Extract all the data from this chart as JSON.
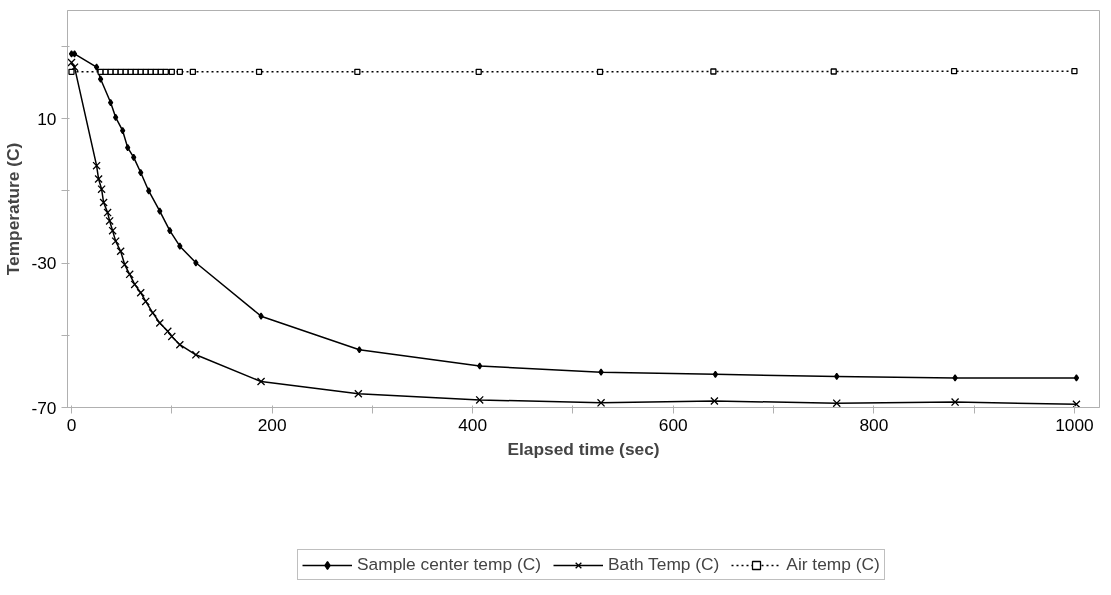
{
  "chart_data": {
    "type": "line",
    "xlabel": "Elapsed time (sec)",
    "ylabel": "Temperature (C)",
    "xlim": [
      -4,
      1025
    ],
    "ylim": [
      -70,
      40
    ],
    "xticks": [
      0,
      {
        "value": 100,
        "label": null
      },
      200,
      {
        "value": 300,
        "label": null
      },
      400,
      {
        "value": 500,
        "label": null
      },
      600,
      {
        "value": 700,
        "label": null
      },
      800,
      {
        "value": 900,
        "label": null
      },
      1000
    ],
    "yticks": [
      -70,
      {
        "value": -50,
        "label": null
      },
      -30,
      {
        "value": -10,
        "label": null
      },
      10,
      {
        "value": 30,
        "label": null
      }
    ],
    "grid": false,
    "legend": "bottom",
    "line_style": "solid",
    "series": [
      {
        "name": "Sample center temp (C)",
        "color": "#000000",
        "marker": "diamond",
        "x": [
          0,
          3,
          25,
          29,
          39,
          44,
          51,
          56,
          62,
          69,
          77,
          88,
          98,
          108,
          124,
          189,
          287,
          407,
          528,
          642,
          763,
          881,
          1002
        ],
        "values": [
          28,
          28,
          24.3,
          21,
          14.5,
          10.4,
          6.7,
          2,
          -0.7,
          -4.9,
          -10,
          -15.6,
          -21,
          -25.3,
          -29.9,
          -44.7,
          -54,
          -58.5,
          -60.2,
          -60.8,
          -61.4,
          -61.8,
          -61.8
        ]
      },
      {
        "name": "Bath Temp (C)",
        "color": "#000000",
        "marker": "cross",
        "x": [
          0,
          3,
          25,
          27,
          30,
          32,
          36,
          38,
          41,
          44,
          49,
          53,
          58,
          63,
          69,
          74,
          81,
          88,
          96,
          100,
          108,
          124,
          189,
          286,
          407,
          528,
          641,
          763,
          881,
          1002
        ],
        "values": [
          25.6,
          24.3,
          -3,
          -6.7,
          -9.5,
          -13.2,
          -16,
          -18.3,
          -21,
          -23.9,
          -26.7,
          -30.4,
          -33.1,
          -35.9,
          -38.2,
          -40.6,
          -43.8,
          -46.6,
          -48.9,
          -50.3,
          -52.6,
          -55.4,
          -62.8,
          -66.2,
          -67.9,
          -68.7,
          -68.2,
          -68.8,
          -68.5,
          -69.1
        ]
      },
      {
        "name": "Air temp (C)",
        "color": "#000000",
        "marker": "square",
        "line_style": "dotted",
        "x": [
          0,
          29,
          34,
          39,
          44,
          49,
          54,
          59,
          64,
          69,
          74,
          79,
          84,
          89,
          94,
          100,
          108,
          121,
          187,
          285,
          406,
          527,
          640,
          760,
          880,
          1000
        ],
        "values": [
          23,
          23,
          23,
          23,
          23,
          23,
          23,
          23,
          23,
          23,
          23,
          23,
          23,
          23,
          23,
          23,
          23,
          23,
          23,
          23,
          23,
          23,
          23.1,
          23.1,
          23.2,
          23.2
        ]
      }
    ]
  }
}
